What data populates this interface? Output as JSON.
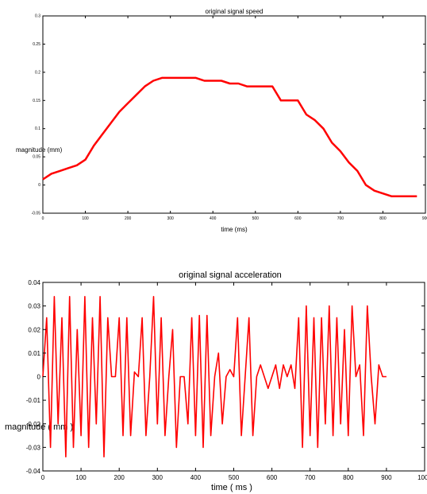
{
  "chart_data": [
    {
      "type": "line",
      "title": "original signal speed",
      "xlabel": "time (ms)",
      "ylabel": "magnitude (mm)",
      "xlim": [
        0,
        900
      ],
      "ylim": [
        -0.05,
        0.3
      ],
      "xticks": [
        "0",
        "100",
        "200",
        "300",
        "400",
        "500",
        "600",
        "700",
        "800",
        "900"
      ],
      "yticks": [
        "-0.05",
        "0",
        "0.05",
        "0.1",
        "0.15",
        "0.2",
        "0.25",
        "0.3"
      ],
      "grid": false,
      "line_color": "#ff0000",
      "series": [
        {
          "x": [
            0,
            20,
            40,
            60,
            80,
            100,
            120,
            140,
            160,
            180,
            200,
            220,
            240,
            260,
            280,
            300,
            320,
            340,
            360,
            380,
            400,
            420,
            440,
            460,
            480,
            500,
            520,
            540,
            560,
            580,
            600,
            620,
            640,
            660,
            680,
            700,
            720,
            740,
            760,
            780,
            800,
            820,
            840,
            860,
            880
          ],
          "y": [
            0.01,
            0.02,
            0.025,
            0.03,
            0.035,
            0.045,
            0.07,
            0.09,
            0.11,
            0.13,
            0.145,
            0.16,
            0.175,
            0.185,
            0.19,
            0.19,
            0.19,
            0.19,
            0.19,
            0.185,
            0.185,
            0.185,
            0.18,
            0.18,
            0.175,
            0.175,
            0.175,
            0.175,
            0.15,
            0.15,
            0.15,
            0.125,
            0.115,
            0.1,
            0.075,
            0.06,
            0.04,
            0.025,
            0.0,
            -0.01,
            -0.015,
            -0.02,
            -0.02,
            -0.02,
            -0.02
          ]
        }
      ]
    },
    {
      "type": "line",
      "title": "original signal acceleration",
      "xlabel": "time ( ms )",
      "ylabel": "magnitude ( mm )",
      "xlim": [
        0,
        1000
      ],
      "ylim": [
        -0.04,
        0.04
      ],
      "xticks": [
        "0",
        "100",
        "200",
        "300",
        "400",
        "500",
        "600",
        "700",
        "800",
        "900",
        "1000"
      ],
      "yticks": [
        "-0.04",
        "-0.03",
        "-0.02",
        "-0.01",
        "0",
        "0.01",
        "0.02",
        "0.03",
        "0.04"
      ],
      "grid": false,
      "line_color": "#ff0000",
      "series": [
        {
          "x": [
            0,
            10,
            20,
            30,
            40,
            50,
            60,
            70,
            80,
            90,
            100,
            110,
            120,
            130,
            140,
            150,
            160,
            170,
            180,
            190,
            200,
            210,
            220,
            230,
            240,
            250,
            260,
            270,
            280,
            290,
            300,
            310,
            320,
            330,
            340,
            350,
            360,
            370,
            380,
            390,
            400,
            410,
            420,
            430,
            440,
            450,
            460,
            470,
            480,
            490,
            500,
            510,
            520,
            530,
            540,
            550,
            560,
            570,
            580,
            590,
            600,
            610,
            620,
            630,
            640,
            650,
            660,
            670,
            680,
            690,
            700,
            710,
            720,
            730,
            740,
            750,
            760,
            770,
            780,
            790,
            800,
            810,
            820,
            830,
            840,
            850,
            860,
            870,
            880,
            890,
            900
          ],
          "y": [
            0.0,
            0.025,
            -0.03,
            0.034,
            -0.02,
            0.025,
            -0.034,
            0.034,
            -0.03,
            0.02,
            -0.025,
            0.034,
            -0.03,
            0.025,
            -0.02,
            0.034,
            -0.034,
            0.025,
            0.0,
            0.0,
            0.025,
            -0.025,
            0.025,
            -0.025,
            0.002,
            0.0,
            0.025,
            -0.025,
            0.0,
            0.034,
            -0.02,
            0.025,
            -0.025,
            0.0,
            0.02,
            -0.03,
            0.0,
            0.0,
            -0.02,
            0.025,
            -0.025,
            0.026,
            -0.03,
            0.026,
            -0.025,
            0.0,
            0.01,
            -0.02,
            0.0,
            0.003,
            0.0,
            0.025,
            -0.025,
            0.0,
            0.025,
            -0.025,
            0.0,
            0.005,
            0.0,
            -0.005,
            0.0,
            0.005,
            -0.005,
            0.005,
            0.0,
            0.005,
            -0.005,
            0.025,
            -0.03,
            0.03,
            -0.025,
            0.025,
            -0.03,
            0.025,
            -0.02,
            0.03,
            -0.025,
            0.025,
            -0.02,
            0.02,
            -0.025,
            0.03,
            0.0,
            0.005,
            -0.025,
            0.03,
            0.0,
            -0.02,
            0.005,
            0.0,
            0.0
          ]
        }
      ]
    }
  ]
}
